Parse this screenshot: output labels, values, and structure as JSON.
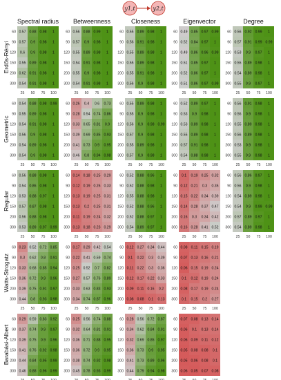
{
  "legend": {
    "node_a": "y1,t",
    "node_b": "y2,t"
  },
  "chart_data": {
    "type": "heatmap",
    "x_ticks": [
      "25",
      "50",
      "75",
      "100"
    ],
    "y_ticks": [
      "60",
      "90",
      "120",
      "150",
      "200",
      "300"
    ],
    "columns": [
      "Spectral radius",
      "Betweenness",
      "Closeness",
      "Eigenvector",
      "Degree"
    ],
    "rows": [
      "Erdős-Rényi",
      "Geometric",
      "Regular",
      "Watts-Strogatz",
      "Barabási-Albert"
    ],
    "panels": [
      [
        [
          [
            0.57,
            0.88,
            0.98,
            1
          ],
          [
            0.57,
            0.9,
            0.98,
            1
          ],
          [
            0.6,
            0.9,
            0.98,
            1
          ],
          [
            0.55,
            0.89,
            0.98,
            1
          ],
          [
            0.62,
            0.91,
            0.98,
            1
          ],
          [
            0.54,
            0.91,
            0.98,
            1
          ]
        ],
        [
          [
            0.56,
            0.88,
            0.99,
            1
          ],
          [
            0.57,
            0.9,
            0.98,
            1
          ],
          [
            0.55,
            0.89,
            0.98,
            1
          ],
          [
            0.54,
            0.91,
            0.98,
            1
          ],
          [
            0.55,
            0.9,
            0.98,
            1
          ],
          [
            0.54,
            0.91,
            0.98,
            1
          ]
        ],
        [
          [
            0.55,
            0.89,
            0.98,
            1
          ],
          [
            0.56,
            0.91,
            0.98,
            1
          ],
          [
            0.55,
            0.89,
            0.98,
            1
          ],
          [
            0.55,
            0.89,
            0.98,
            1
          ],
          [
            0.55,
            0.91,
            0.98,
            1
          ],
          [
            0.56,
            0.9,
            0.98,
            1
          ]
        ],
        [
          [
            0.49,
            0.85,
            0.97,
            0.99
          ],
          [
            0.52,
            0.84,
            0.97,
            1
          ],
          [
            0.49,
            0.86,
            0.96,
            0.99
          ],
          [
            0.51,
            0.85,
            0.97,
            1
          ],
          [
            0.52,
            0.86,
            0.97,
            1
          ],
          [
            0.51,
            0.86,
            0.97,
            0.99
          ]
        ],
        [
          [
            0.56,
            0.92,
            0.99,
            1
          ],
          [
            0.57,
            0.91,
            0.99,
            0.99
          ],
          [
            0.53,
            0.9,
            0.97,
            1
          ],
          [
            0.55,
            0.89,
            0.98,
            1
          ],
          [
            0.54,
            0.89,
            0.98,
            1
          ],
          [
            0.55,
            0.9,
            0.97,
            1
          ]
        ]
      ],
      [
        [
          [
            0.54,
            0.88,
            0.98,
            0.99
          ],
          [
            0.55,
            0.89,
            0.98,
            1
          ],
          [
            0.54,
            0.91,
            0.98,
            1
          ],
          [
            0.56,
            0.9,
            0.98,
            1
          ],
          [
            0.54,
            0.89,
            0.98,
            1
          ],
          [
            0.54,
            0.9,
            0.98,
            1
          ]
        ],
        [
          [
            0.26,
            0.4,
            0.6,
            0.73
          ],
          [
            0.28,
            0.54,
            0.74,
            0.86
          ],
          [
            0.33,
            0.65,
            0.81,
            0.9
          ],
          [
            0.39,
            0.69,
            0.85,
            0.93
          ],
          [
            0.41,
            0.73,
            0.9,
            0.95
          ],
          [
            0.46,
            0.8,
            0.94,
            0.98
          ]
        ],
        [
          [
            0.55,
            0.89,
            0.98,
            1
          ],
          [
            0.55,
            0.9,
            0.98,
            1
          ],
          [
            0.56,
            0.9,
            0.98,
            0.99
          ],
          [
            0.57,
            0.9,
            0.98,
            1
          ],
          [
            0.55,
            0.89,
            0.98,
            1
          ],
          [
            0.57,
            0.9,
            0.98,
            1
          ]
        ],
        [
          [
            0.52,
            0.89,
            0.97,
            1
          ],
          [
            0.53,
            0.9,
            0.98,
            1
          ],
          [
            0.53,
            0.89,
            0.98,
            1
          ],
          [
            0.55,
            0.89,
            0.98,
            1
          ],
          [
            0.57,
            0.91,
            0.98,
            1
          ],
          [
            0.54,
            0.88,
            0.98,
            1
          ]
        ],
        [
          [
            0.56,
            0.91,
            0.98,
            1
          ],
          [
            0.56,
            0.9,
            0.98,
            1
          ],
          [
            0.55,
            0.89,
            0.98,
            1
          ],
          [
            0.56,
            0.89,
            0.98,
            1
          ],
          [
            0.53,
            0.9,
            0.98,
            1
          ],
          [
            0.55,
            0.9,
            0.98,
            1
          ]
        ]
      ],
      [
        [
          [
            0.56,
            0.88,
            0.98,
            1
          ],
          [
            0.54,
            0.86,
            0.98,
            1
          ],
          [
            0.53,
            0.88,
            0.97,
            1
          ],
          [
            0.57,
            0.87,
            0.98,
            1
          ],
          [
            0.56,
            0.88,
            0.98,
            1
          ],
          [
            0.53,
            0.89,
            0.97,
            0.99
          ]
        ],
        [
          [
            0.14,
            0.18,
            0.25,
            0.29
          ],
          [
            0.12,
            0.19,
            0.26,
            0.33
          ],
          [
            0.13,
            0.19,
            0.25,
            0.31
          ],
          [
            0.13,
            0.2,
            0.25,
            0.31
          ],
          [
            0.11,
            0.19,
            0.24,
            0.32
          ],
          [
            0.13,
            0.18,
            0.23,
            0.29
          ]
        ],
        [
          [
            0.52,
            0.88,
            0.96,
            1
          ],
          [
            0.52,
            0.88,
            0.98,
            1
          ],
          [
            0.55,
            0.88,
            0.98,
            1
          ],
          [
            0.52,
            0.88,
            0.96,
            1
          ],
          [
            0.52,
            0.88,
            0.97,
            1
          ],
          [
            0.54,
            0.89,
            0.97,
            1
          ]
        ],
        [
          [
            0.1,
            0.19,
            0.25,
            0.32
          ],
          [
            0.12,
            0.21,
            0.3,
            0.35
          ],
          [
            0.15,
            0.22,
            0.34,
            0.39
          ],
          [
            0.14,
            0.28,
            0.37,
            0.47
          ],
          [
            0.16,
            0.3,
            0.34,
            0.42
          ],
          [
            0.16,
            0.28,
            0.41,
            0.52
          ]
        ],
        [
          [
            0.56,
            0.86,
            0.97,
            1
          ],
          [
            0.56,
            0.9,
            0.98,
            1
          ],
          [
            0.54,
            0.89,
            0.98,
            1
          ],
          [
            0.54,
            0.9,
            0.99,
            0.99
          ],
          [
            0.57,
            0.89,
            0.97,
            1
          ],
          [
            0.54,
            0.89,
            0.98,
            1
          ]
        ]
      ],
      [
        [
          [
            0.23,
            0.52,
            0.72,
            0.85
          ],
          [
            0.3,
            0.62,
            0.8,
            0.91
          ],
          [
            0.33,
            0.68,
            0.85,
            0.94
          ],
          [
            0.36,
            0.72,
            0.9,
            0.96
          ],
          [
            0.39,
            0.75,
            0.91,
            0.97
          ],
          [
            0.44,
            0.8,
            0.93,
            0.98
          ]
        ],
        [
          [
            0.17,
            0.29,
            0.42,
            0.54
          ],
          [
            0.22,
            0.41,
            0.59,
            0.74
          ],
          [
            0.25,
            0.52,
            0.7,
            0.82
          ],
          [
            0.27,
            0.57,
            0.76,
            0.89
          ],
          [
            0.33,
            0.63,
            0.83,
            0.93
          ],
          [
            0.34,
            0.74,
            0.87,
            0.96
          ]
        ],
        [
          [
            0.12,
            0.27,
            0.34,
            0.44
          ],
          [
            0.1,
            0.22,
            0.3,
            0.39
          ],
          [
            0.11,
            0.22,
            0.3,
            0.36
          ],
          [
            0.12,
            0.17,
            0.22,
            0.33
          ],
          [
            0.09,
            0.11,
            0.16,
            0.2
          ],
          [
            0.08,
            0.08,
            0.1,
            0.13
          ]
        ],
        [
          [
            0.08,
            0.11,
            0.15,
            0.19
          ],
          [
            0.07,
            0.13,
            0.16,
            0.21
          ],
          [
            0.06,
            0.15,
            0.19,
            0.24
          ],
          [
            0.1,
            0.12,
            0.19,
            0.24
          ],
          [
            0.08,
            0.17,
            0.19,
            0.24
          ],
          [
            0.1,
            0.15,
            0.2,
            0.27
          ]
        ],
        null
      ],
      [
        [
          [
            0.29,
            0.59,
            0.83,
            0.92
          ],
          [
            0.37,
            0.74,
            0.9,
            0.97
          ],
          [
            0.39,
            0.75,
            0.9,
            0.96
          ],
          [
            0.41,
            0.76,
            0.92,
            0.98
          ],
          [
            0.44,
            0.84,
            0.95,
            0.99
          ],
          [
            0.46,
            0.88,
            0.96,
            0.99
          ]
        ],
        [
          [
            0.25,
            0.56,
            0.74,
            0.88
          ],
          [
            0.32,
            0.64,
            0.81,
            0.91
          ],
          [
            0.36,
            0.71,
            0.88,
            0.95
          ],
          [
            0.36,
            0.72,
            0.9,
            0.95
          ],
          [
            0.38,
            0.74,
            0.92,
            0.98
          ],
          [
            0.45,
            0.78,
            0.93,
            0.99
          ]
        ],
        [
          [
            0.28,
            0.56,
            0.72,
            0.87
          ],
          [
            0.34,
            0.62,
            0.84,
            0.91
          ],
          [
            0.32,
            0.69,
            0.85,
            0.97
          ],
          [
            0.36,
            0.73,
            0.9,
            0.95
          ],
          [
            0.41,
            0.73,
            0.89,
            0.96
          ],
          [
            0.44,
            0.79,
            0.94,
            0.98
          ]
        ],
        [
          [
            0.07,
            0.08,
            0.13,
            0.14
          ],
          [
            0.06,
            0.1,
            0.13,
            0.14
          ],
          [
            0.06,
            0.09,
            0.11,
            0.12
          ],
          [
            0.05,
            0.08,
            0.08,
            0.1
          ],
          [
            0.05,
            0.06,
            0.08,
            0.1
          ],
          [
            0.06,
            0.05,
            0.07,
            0.08
          ]
        ],
        null
      ]
    ]
  }
}
